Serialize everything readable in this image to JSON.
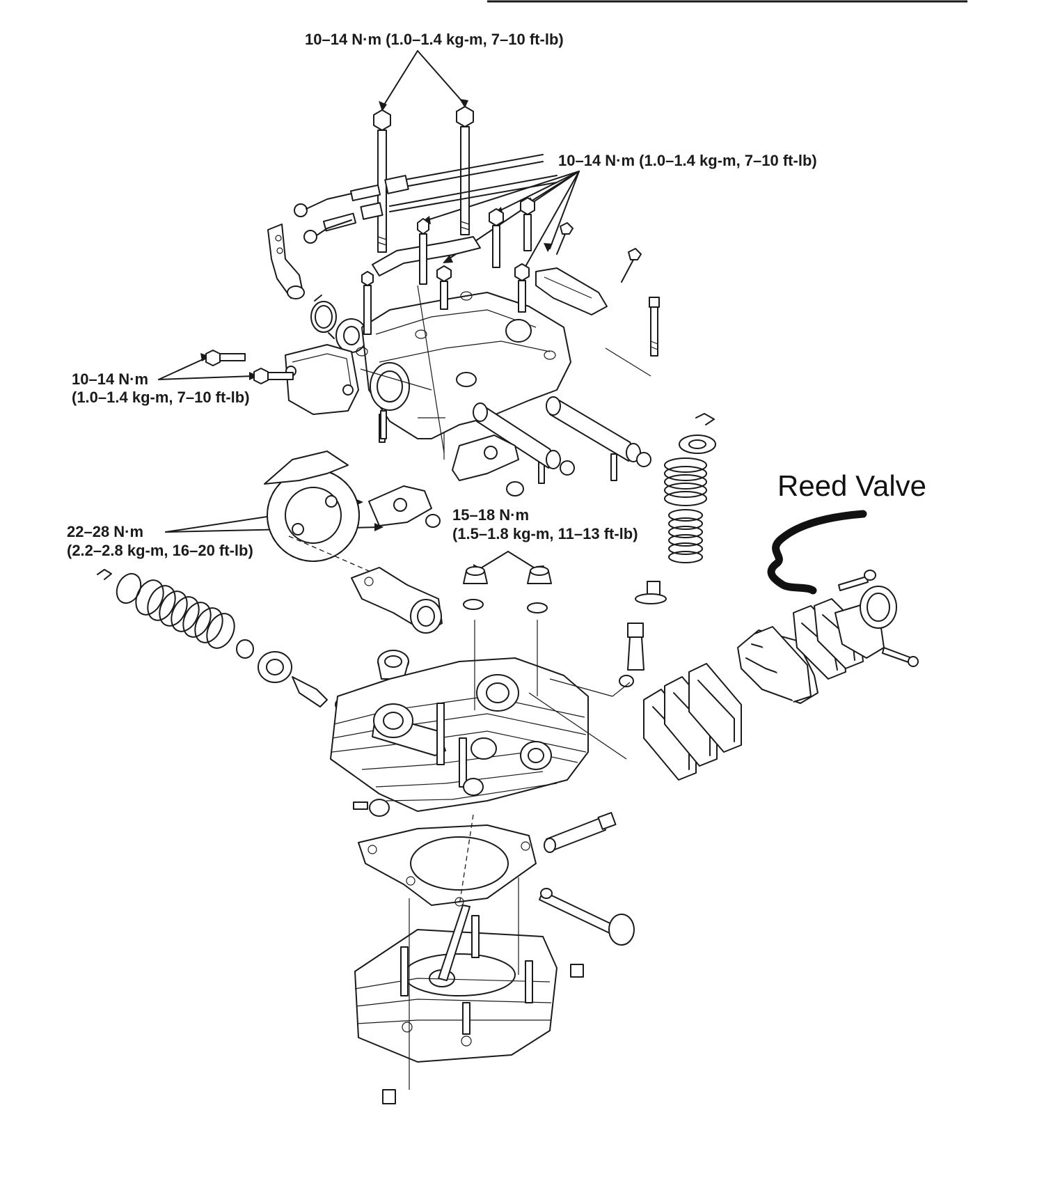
{
  "torque_labels": {
    "top_bolts": "10–14 N·m (1.0–1.4 kg-m, 7–10 ft-lb)",
    "upper_right_bolts": "10–14 N·m (1.0–1.4 kg-m, 7–10 ft-lb)",
    "side_cover_line1": "10–14 N·m",
    "side_cover_line2": "(1.0–1.4 kg-m, 7–10 ft-lb)",
    "rocker_line1": "15–18 N·m",
    "rocker_line2": "(1.5–1.8 kg-m, 11–13 ft-lb)",
    "sprocket_line1": "22–28 N·m",
    "sprocket_line2": "(2.2–2.8 kg-m, 16–20 ft-lb)"
  },
  "annotation": {
    "label": "Reed Valve",
    "marker_color": "#111111"
  },
  "colors": {
    "ink": "#1a1a1a",
    "paper": "#ffffff"
  }
}
